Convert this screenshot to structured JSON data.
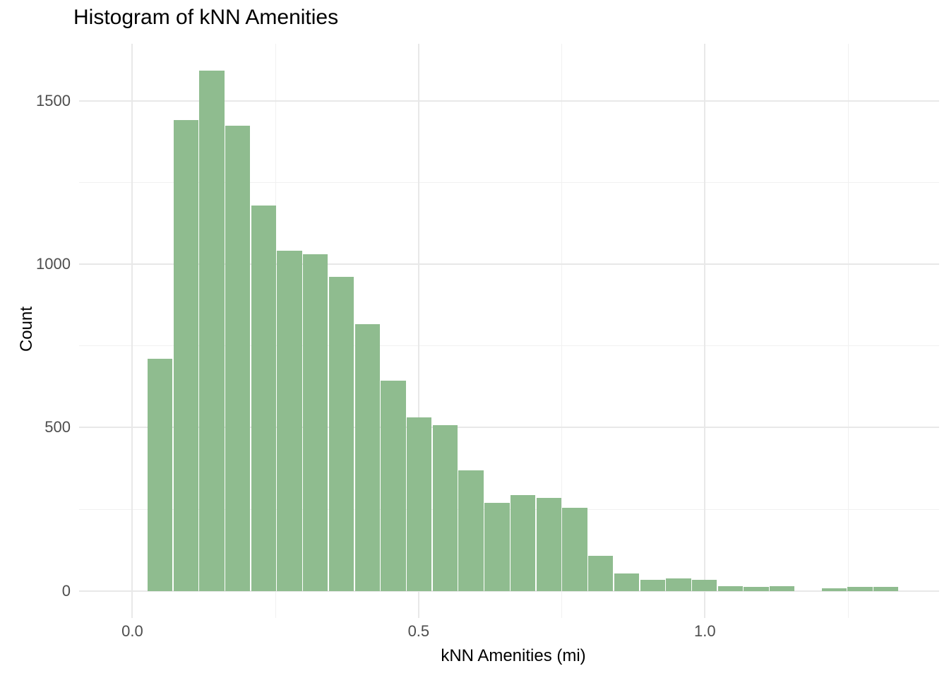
{
  "page": {
    "title": "Histogram of kNN Amenities"
  },
  "chart_data": {
    "type": "bar",
    "subtype": "histogram",
    "title": "Histogram of kNN Amenities",
    "xlabel": "kNN Amenities (mi)",
    "ylabel": "Count",
    "legend": "none",
    "grid": true,
    "bin_start": 0.0256,
    "bin_width": 0.04528,
    "counts": [
      711,
      1441,
      1593,
      1425,
      1180,
      1041,
      1031,
      961,
      816,
      644,
      532,
      508,
      369,
      269,
      293,
      285,
      254,
      108,
      53,
      34,
      38,
      34,
      15,
      12,
      15,
      0,
      8,
      12,
      12
    ],
    "x_axis": {
      "lim": [
        -0.093,
        1.409
      ],
      "major_ticks": [
        0.0,
        0.5,
        1.0
      ],
      "tick_labels": [
        "0.0",
        "0.5",
        "1.0"
      ],
      "minor_ticks": [
        0.25,
        0.75,
        1.25
      ]
    },
    "y_axis": {
      "lim": [
        -83,
        1675
      ],
      "major_ticks": [
        0,
        500,
        1000,
        1500
      ],
      "tick_labels": [
        "0",
        "500",
        "1000",
        "1500"
      ],
      "minor_ticks": [
        250,
        750,
        1250
      ]
    },
    "colors": {
      "bar_fill": "#8FBC8F",
      "bar_separator": "#FFFFFF",
      "grid_major": "#E8E8E8",
      "grid_minor": "#F1F1F1",
      "tick_label": "#4D4D4D",
      "axis_title": "#000000",
      "plot_title": "#000000",
      "background": "#FFFFFF"
    }
  }
}
